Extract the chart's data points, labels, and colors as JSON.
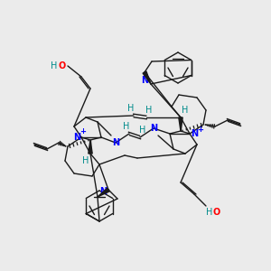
{
  "bg_color": "#ebebeb",
  "bond_color": "#1a1a1a",
  "N_color": "#0000ff",
  "H_color": "#008b8b",
  "O_color": "#ff0000",
  "fig_width": 3.0,
  "fig_height": 3.0,
  "dpi": 100,
  "xlim": [
    0,
    300
  ],
  "ylim": [
    0,
    300
  ]
}
